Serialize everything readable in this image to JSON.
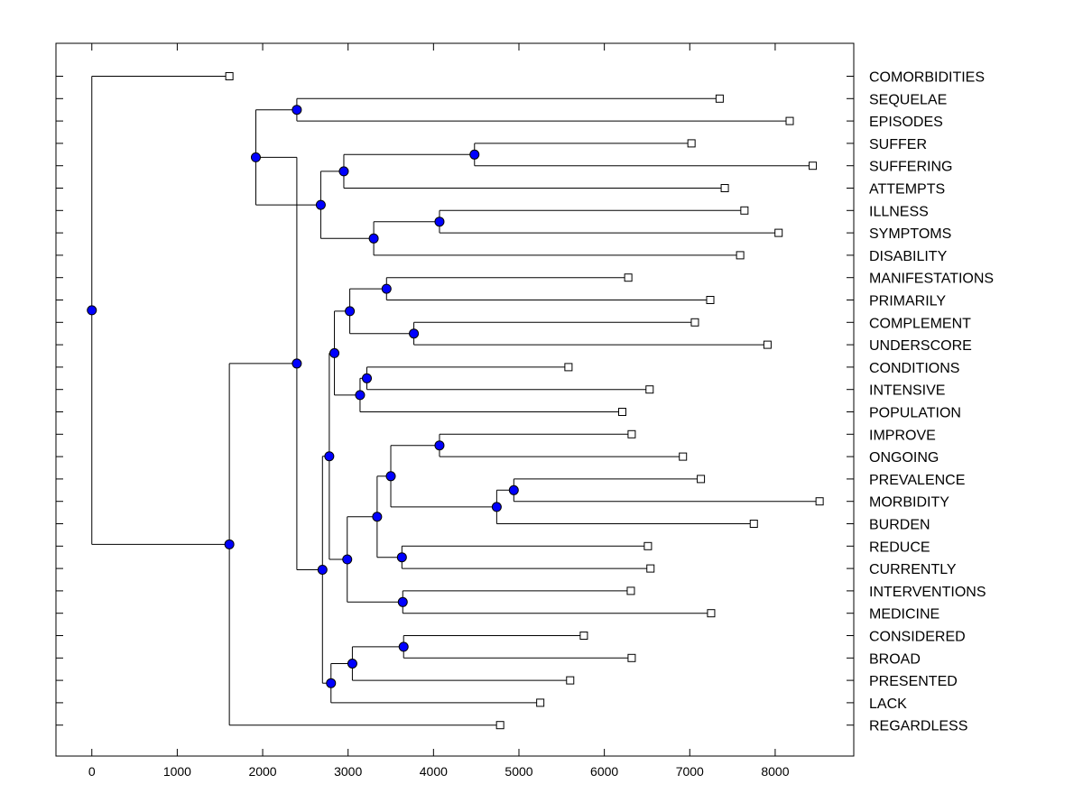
{
  "chart_data": {
    "type": "dendrogram",
    "orientation": "horizontal",
    "xlim": [
      -420,
      8920
    ],
    "xticks": [
      0,
      1000,
      2000,
      3000,
      4000,
      5000,
      6000,
      7000,
      8000
    ],
    "xtick_labels": [
      "0",
      "1000",
      "2000",
      "3000",
      "4000",
      "5000",
      "6000",
      "7000",
      "8000"
    ],
    "leaf_marker_color": "#ffffff",
    "node_marker_color": "#0000ff",
    "leaves": [
      {
        "label": "COMORBIDITIES",
        "value": 1610
      },
      {
        "label": "SEQUELAE",
        "value": 7350
      },
      {
        "label": "EPISODES",
        "value": 8170
      },
      {
        "label": "SUFFER",
        "value": 7020
      },
      {
        "label": "SUFFERING",
        "value": 8440
      },
      {
        "label": "ATTEMPTS",
        "value": 7410
      },
      {
        "label": "ILLNESS",
        "value": 7640
      },
      {
        "label": "SYMPTOMS",
        "value": 8040
      },
      {
        "label": "DISABILITY",
        "value": 7590
      },
      {
        "label": "MANIFESTATIONS",
        "value": 6280
      },
      {
        "label": "PRIMARILY",
        "value": 7240
      },
      {
        "label": "COMPLEMENT",
        "value": 7060
      },
      {
        "label": "UNDERSCORE",
        "value": 7910
      },
      {
        "label": "CONDITIONS",
        "value": 5580
      },
      {
        "label": "INTENSIVE",
        "value": 6530
      },
      {
        "label": "POPULATION",
        "value": 6210
      },
      {
        "label": "IMPROVE",
        "value": 6320
      },
      {
        "label": "ONGOING",
        "value": 6920
      },
      {
        "label": "PREVALENCE",
        "value": 7130
      },
      {
        "label": "MORBIDITY",
        "value": 8520
      },
      {
        "label": "BURDEN",
        "value": 7750
      },
      {
        "label": "REDUCE",
        "value": 6510
      },
      {
        "label": "CURRENTLY",
        "value": 6540
      },
      {
        "label": "INTERVENTIONS",
        "value": 6310
      },
      {
        "label": "MEDICINE",
        "value": 7250
      },
      {
        "label": "CONSIDERED",
        "value": 5760
      },
      {
        "label": "BROAD",
        "value": 6320
      },
      {
        "label": "PRESENTED",
        "value": 5600
      },
      {
        "label": "LACK",
        "value": 5250
      },
      {
        "label": "REGARDLESS",
        "value": 4780
      }
    ],
    "nodes": [
      {
        "id": "A",
        "value": 2400,
        "children": [
          "L1",
          "L2"
        ]
      },
      {
        "id": "B",
        "value": 4480,
        "children": [
          "L3",
          "L4"
        ]
      },
      {
        "id": "C",
        "value": 2950,
        "children": [
          "B",
          "L5"
        ]
      },
      {
        "id": "D",
        "value": 4070,
        "children": [
          "L6",
          "L7"
        ]
      },
      {
        "id": "E",
        "value": 3300,
        "children": [
          "D",
          "L8"
        ]
      },
      {
        "id": "F",
        "value": 2680,
        "children": [
          "C",
          "E"
        ]
      },
      {
        "id": "G",
        "value": 1920,
        "children": [
          "A",
          "F"
        ]
      },
      {
        "id": "H",
        "value": 3450,
        "children": [
          "L9",
          "L10"
        ]
      },
      {
        "id": "I",
        "value": 3770,
        "children": [
          "L11",
          "L12"
        ]
      },
      {
        "id": "J",
        "value": 3020,
        "children": [
          "H",
          "I"
        ]
      },
      {
        "id": "K",
        "value": 3220,
        "children": [
          "L13",
          "L14"
        ]
      },
      {
        "id": "M",
        "value": 3140,
        "children": [
          "K",
          "L15"
        ]
      },
      {
        "id": "N",
        "value": 2840,
        "children": [
          "J",
          "M"
        ]
      },
      {
        "id": "O",
        "value": 4070,
        "children": [
          "L16",
          "L17"
        ]
      },
      {
        "id": "P",
        "value": 4940,
        "children": [
          "L18",
          "L19"
        ]
      },
      {
        "id": "Q",
        "value": 4740,
        "children": [
          "P",
          "L20"
        ]
      },
      {
        "id": "R",
        "value": 3500,
        "children": [
          "O",
          "Q"
        ]
      },
      {
        "id": "S",
        "value": 3630,
        "children": [
          "L21",
          "L22"
        ]
      },
      {
        "id": "T",
        "value": 3340,
        "children": [
          "R",
          "S"
        ]
      },
      {
        "id": "U",
        "value": 3640,
        "children": [
          "L23",
          "L24"
        ]
      },
      {
        "id": "V",
        "value": 2990,
        "children": [
          "T",
          "U"
        ]
      },
      {
        "id": "W",
        "value": 2780,
        "children": [
          "N",
          "V"
        ]
      },
      {
        "id": "X",
        "value": 3650,
        "children": [
          "L25",
          "L26"
        ]
      },
      {
        "id": "Y",
        "value": 3050,
        "children": [
          "X",
          "L27"
        ]
      },
      {
        "id": "Z",
        "value": 2800,
        "children": [
          "Y",
          "L28"
        ]
      },
      {
        "id": "AA",
        "value": 2700,
        "children": [
          "W",
          "Z"
        ]
      },
      {
        "id": "AB",
        "value": 2400,
        "children": [
          "G",
          "AA"
        ]
      },
      {
        "id": "AC",
        "value": 1610,
        "children": [
          "AB",
          "L29"
        ]
      },
      {
        "id": "AD",
        "value": 0,
        "children": [
          "L0",
          "AC"
        ]
      }
    ]
  }
}
